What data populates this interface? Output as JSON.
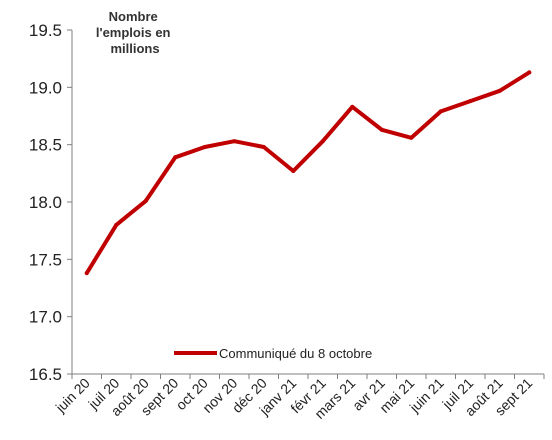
{
  "chart_data": {
    "type": "line",
    "title": "",
    "xlabel": "",
    "ylabel": "",
    "unit_label": [
      "Nombre",
      "l'emplois en",
      "millions"
    ],
    "categories": [
      "juin 20",
      "juil 20",
      "août 20",
      "sept 20",
      "oct 20",
      "nov 20",
      "déc 20",
      "janv 21",
      "févr 21",
      "mars 21",
      "avr 21",
      "mai 21",
      "juin 21",
      "juil 21",
      "août 21",
      "sept 21"
    ],
    "series": [
      {
        "name": "Communiqué du 8 octobre",
        "color": "#c00000",
        "values": [
          17.38,
          17.8,
          18.01,
          18.39,
          18.48,
          18.53,
          18.48,
          18.27,
          18.53,
          18.83,
          18.63,
          18.56,
          18.79,
          18.88,
          18.97,
          19.13
        ]
      }
    ],
    "ylim": [
      16.5,
      19.5
    ],
    "yticks": [
      16.5,
      17.0,
      17.5,
      18.0,
      18.5,
      19.0,
      19.5
    ],
    "ytick_labels": [
      "16.5",
      "17.0",
      "17.5",
      "18.0",
      "18.5",
      "19.0",
      "19.5"
    ],
    "grid": false,
    "legend_position": "bottom-center"
  }
}
